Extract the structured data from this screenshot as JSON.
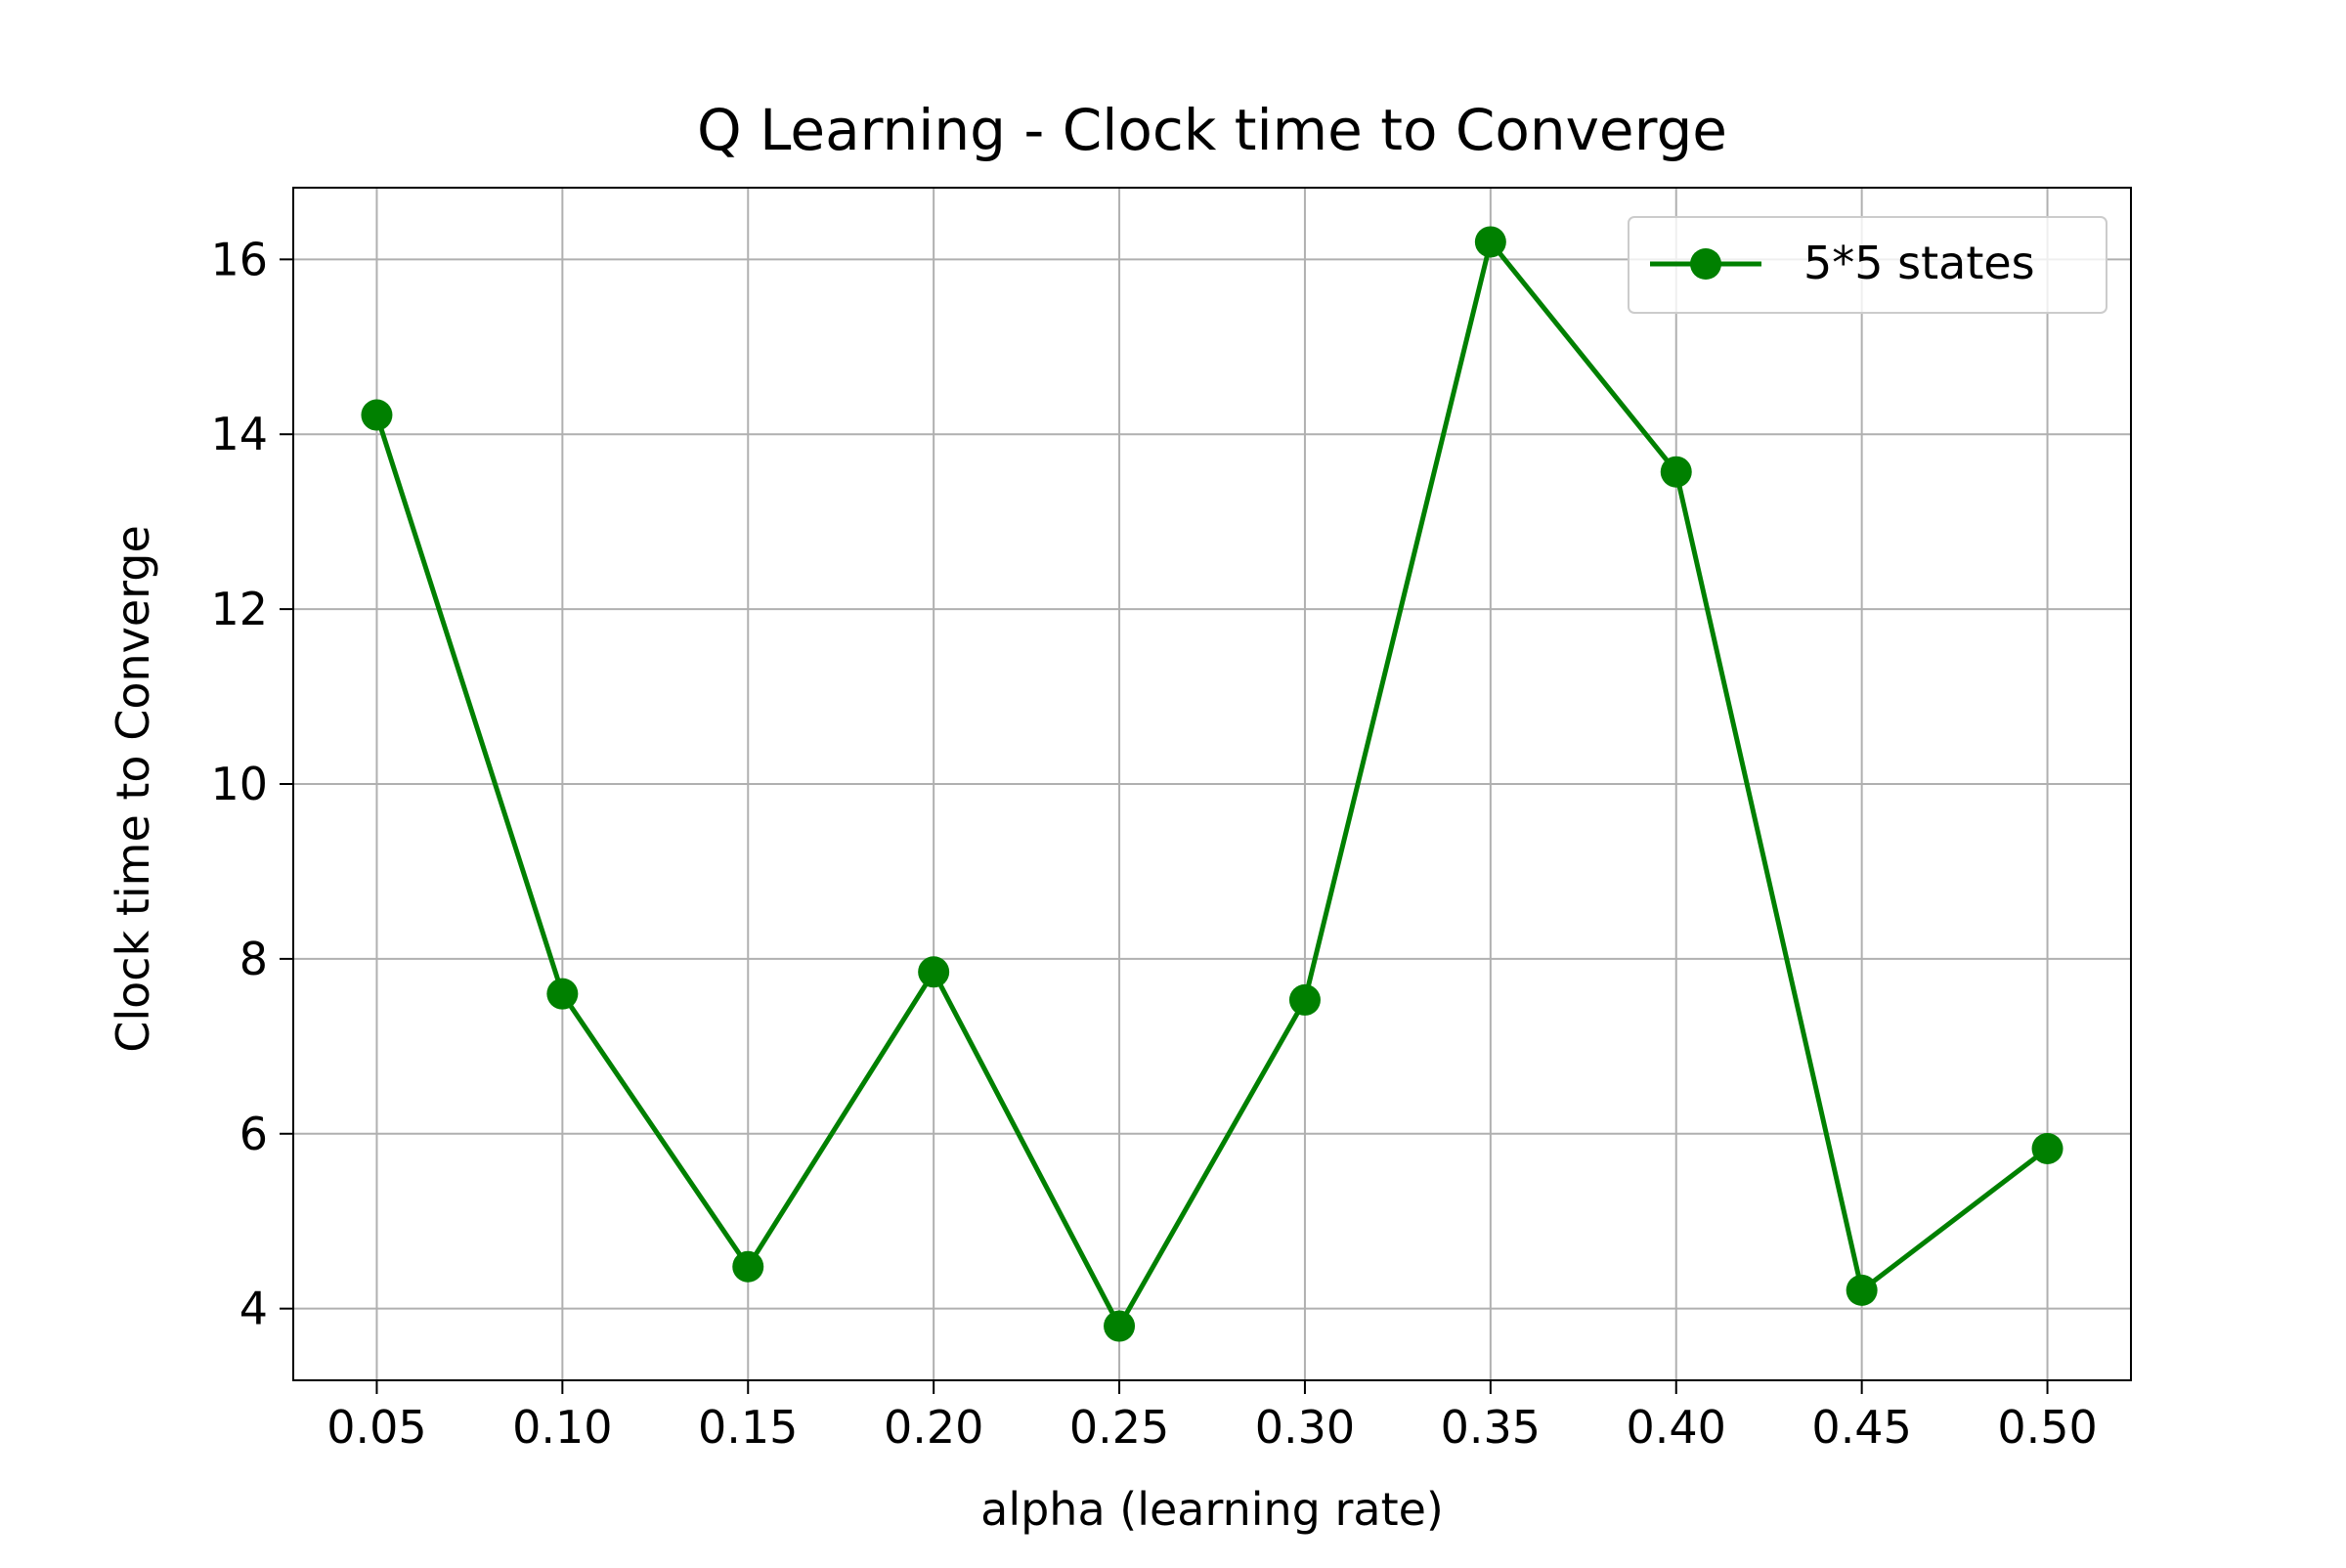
{
  "chart_data": {
    "type": "line",
    "title": "Q Learning - Clock time to Converge",
    "xlabel": "alpha (learning rate)",
    "ylabel": "Clock time to Converge",
    "x": [
      0.05,
      0.1,
      0.15,
      0.2,
      0.25,
      0.3,
      0.35,
      0.4,
      0.45,
      0.5
    ],
    "x_tick_labels": [
      "0.05",
      "0.10",
      "0.15",
      "0.20",
      "0.25",
      "0.30",
      "0.35",
      "0.40",
      "0.45",
      "0.50"
    ],
    "y_ticks": [
      4,
      6,
      8,
      10,
      12,
      14,
      16
    ],
    "y_tick_labels": [
      "4",
      "6",
      "8",
      "10",
      "12",
      "14",
      "16"
    ],
    "xlim": [
      0.0275,
      0.5225
    ],
    "ylim": [
      3.18,
      16.82
    ],
    "grid": true,
    "legend_position": "top-right",
    "series": [
      {
        "name": "5*5 states",
        "color": "#008000",
        "marker": "circle",
        "values": [
          14.22,
          7.6,
          4.48,
          7.85,
          3.8,
          7.53,
          16.2,
          13.57,
          4.21,
          5.83
        ]
      }
    ]
  }
}
